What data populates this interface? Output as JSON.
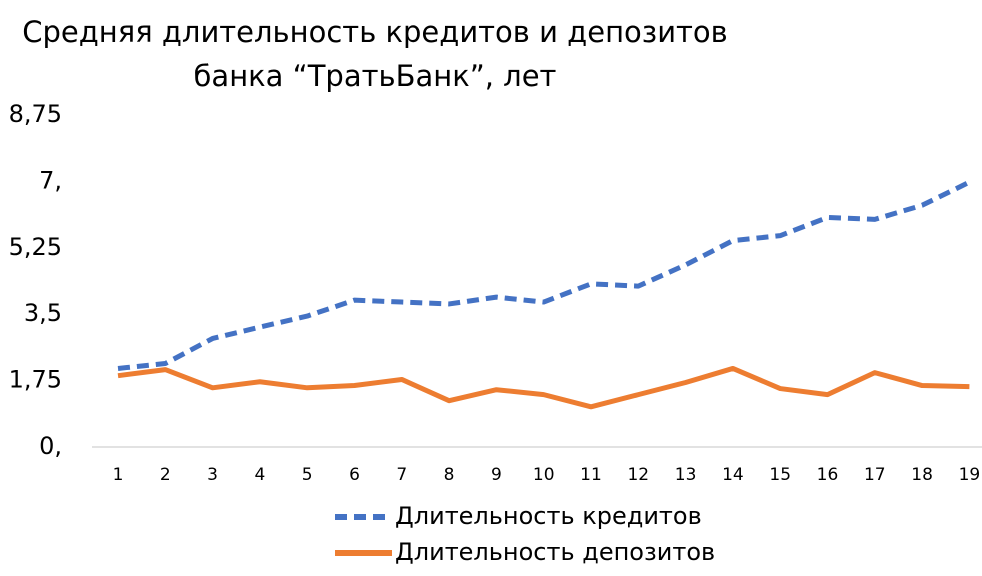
{
  "chart_data": {
    "type": "line",
    "title": [
      "Средняя длительность кредитов и депозитов",
      "банка “ТратьБанк”, лет"
    ],
    "categories": [
      "1",
      "2",
      "3",
      "4",
      "5",
      "6",
      "7",
      "8",
      "9",
      "10",
      "11",
      "12",
      "13",
      "14",
      "15",
      "16",
      "17",
      "18",
      "19"
    ],
    "series": [
      {
        "name": "Длительность кредитов",
        "color": "#4472c4",
        "dashed": true,
        "values": [
          2.07,
          2.2,
          2.86,
          3.16,
          3.45,
          3.87,
          3.82,
          3.77,
          3.95,
          3.82,
          4.3,
          4.24,
          4.8,
          5.44,
          5.57,
          6.05,
          6.0,
          6.37,
          6.98
        ]
      },
      {
        "name": "Длительность депозитов",
        "color": "#ed7d31",
        "dashed": false,
        "values": [
          1.88,
          2.04,
          1.56,
          1.72,
          1.56,
          1.62,
          1.78,
          1.22,
          1.51,
          1.38,
          1.06,
          1.38,
          1.7,
          2.07,
          1.54,
          1.38,
          1.96,
          1.62,
          1.59
        ]
      }
    ],
    "ylim": [
      0,
      8.75
    ],
    "yticks": [
      {
        "value": 0,
        "label": "0,"
      },
      {
        "value": 1.75,
        "label": "1,75"
      },
      {
        "value": 3.5,
        "label": "3,5"
      },
      {
        "value": 5.25,
        "label": "5,25"
      },
      {
        "value": 7,
        "label": "7,"
      },
      {
        "value": 8.75,
        "label": "8,75"
      }
    ],
    "grid": false
  }
}
